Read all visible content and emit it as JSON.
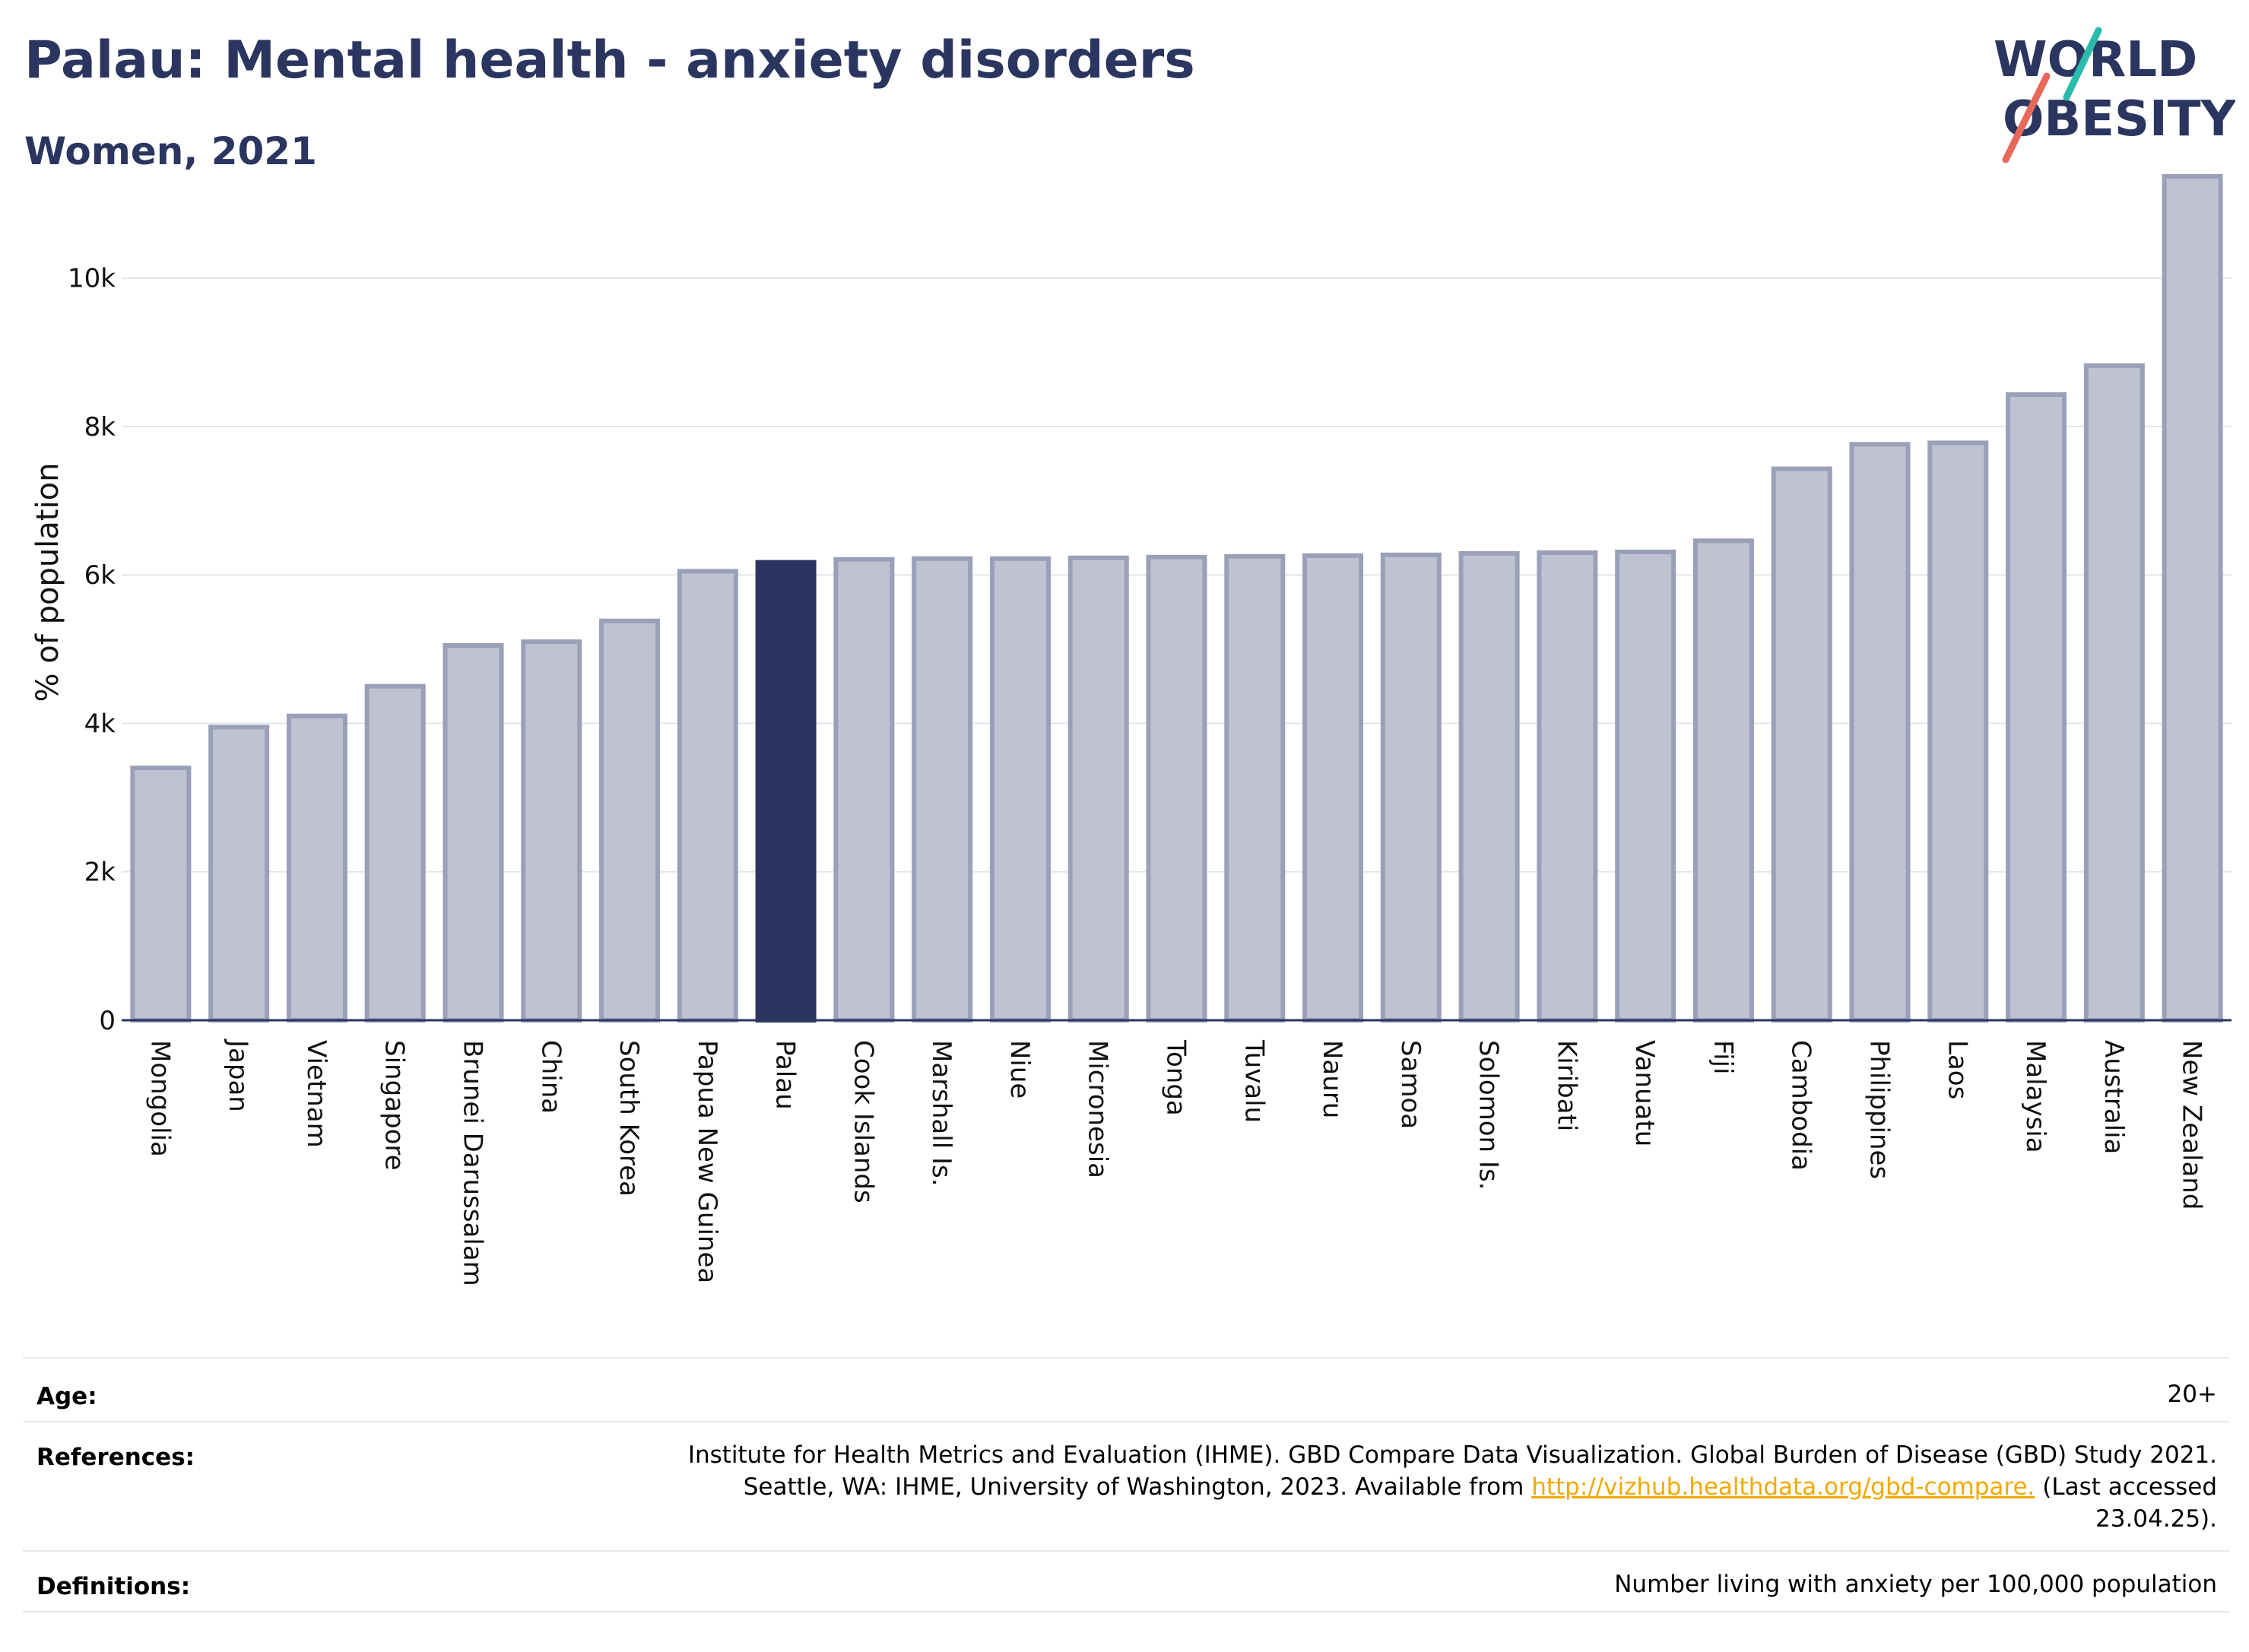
{
  "header": {
    "title": "Palau: Mental health - anxiety disorders",
    "subtitle": "Women, 2021"
  },
  "logo": {
    "line1": "WORLD",
    "line2": "OBESITY",
    "slash_colors": [
      "#2bbbad",
      "#e8685a"
    ]
  },
  "colors": {
    "bar_default": "#bfc3d1",
    "bar_border": "#9aa0b8",
    "bar_highlight": "#2a3560",
    "title": "#2a3560",
    "link": "#f2a900"
  },
  "chart_data": {
    "type": "bar",
    "ylabel": "% of population",
    "ylim": [
      0,
      11800
    ],
    "yticks": [
      0,
      2000,
      4000,
      6000,
      8000,
      10000
    ],
    "ytick_labels": [
      "0",
      "2k",
      "4k",
      "6k",
      "8k",
      "10k"
    ],
    "grid": true,
    "highlight": "Palau",
    "categories": [
      "Mongolia",
      "Japan",
      "Vietnam",
      "Singapore",
      "Brunei Darussalam",
      "China",
      "South Korea",
      "Papua New Guinea",
      "Palau",
      "Cook Islands",
      "Marshall Is.",
      "Niue",
      "Micronesia",
      "Tonga",
      "Tuvalu",
      "Nauru",
      "Samoa",
      "Solomon Is.",
      "Kiribati",
      "Vanuatu",
      "Fiji",
      "Cambodia",
      "Philippines",
      "Laos",
      "Malaysia",
      "Australia",
      "New Zealand"
    ],
    "values": [
      3400,
      3950,
      4100,
      4500,
      5050,
      5100,
      5380,
      6050,
      6170,
      6210,
      6220,
      6220,
      6230,
      6240,
      6250,
      6260,
      6270,
      6290,
      6300,
      6310,
      6460,
      7430,
      7760,
      7780,
      8430,
      8820,
      11370
    ]
  },
  "meta": {
    "age_label": "Age:",
    "age_value": "20+",
    "references_label": "References:",
    "references_line1": "Institute for Health Metrics and Evaluation (IHME). GBD Compare Data Visualization. Global Burden of Disease (GBD) Study 2021.",
    "references_line2_pre": "Seattle, WA: IHME, University of Washington, 2023. Available from ",
    "references_link": "http://vizhub.healthdata.org/gbd-compare.",
    "references_line2_post": " (Last accessed",
    "references_line3": "23.04.25).",
    "definitions_label": "Definitions:",
    "definitions_value": "Number living with anxiety per 100,000 population"
  }
}
